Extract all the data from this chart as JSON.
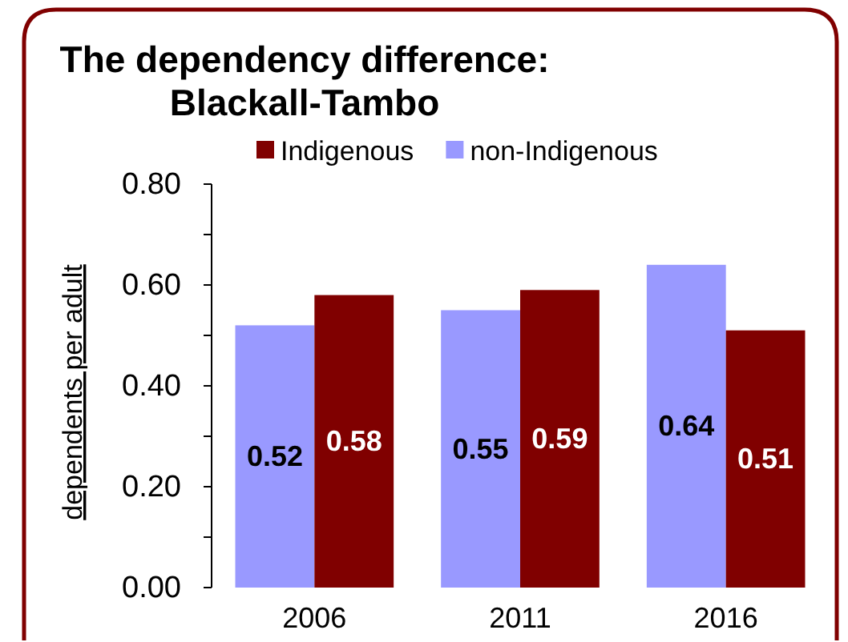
{
  "chart_data": {
    "type": "bar",
    "title": "The dependency difference:\nBlackall-Tambo",
    "ylabel": "dependents per adult",
    "categories": [
      "2006",
      "2011",
      "2016"
    ],
    "series": [
      {
        "name": "non-Indigenous",
        "color": "#9999ff",
        "values": [
          0.52,
          0.55,
          0.64
        ]
      },
      {
        "name": "Indigenous",
        "color": "#800000",
        "values": [
          0.58,
          0.59,
          0.51
        ]
      }
    ],
    "ylim": [
      0,
      0.8
    ],
    "yticks": [
      {
        "value": 0,
        "label": "0.00"
      },
      {
        "value": 0.1,
        "label": null
      },
      {
        "value": 0.2,
        "label": "0.20"
      },
      {
        "value": 0.3,
        "label": null
      },
      {
        "value": 0.4,
        "label": "0.40"
      },
      {
        "value": 0.5,
        "label": null
      },
      {
        "value": 0.6,
        "label": "0.60"
      },
      {
        "value": 0.7,
        "label": null
      },
      {
        "value": 0.8,
        "label": "0.80"
      }
    ],
    "legend": "top",
    "data_labels": true
  }
}
